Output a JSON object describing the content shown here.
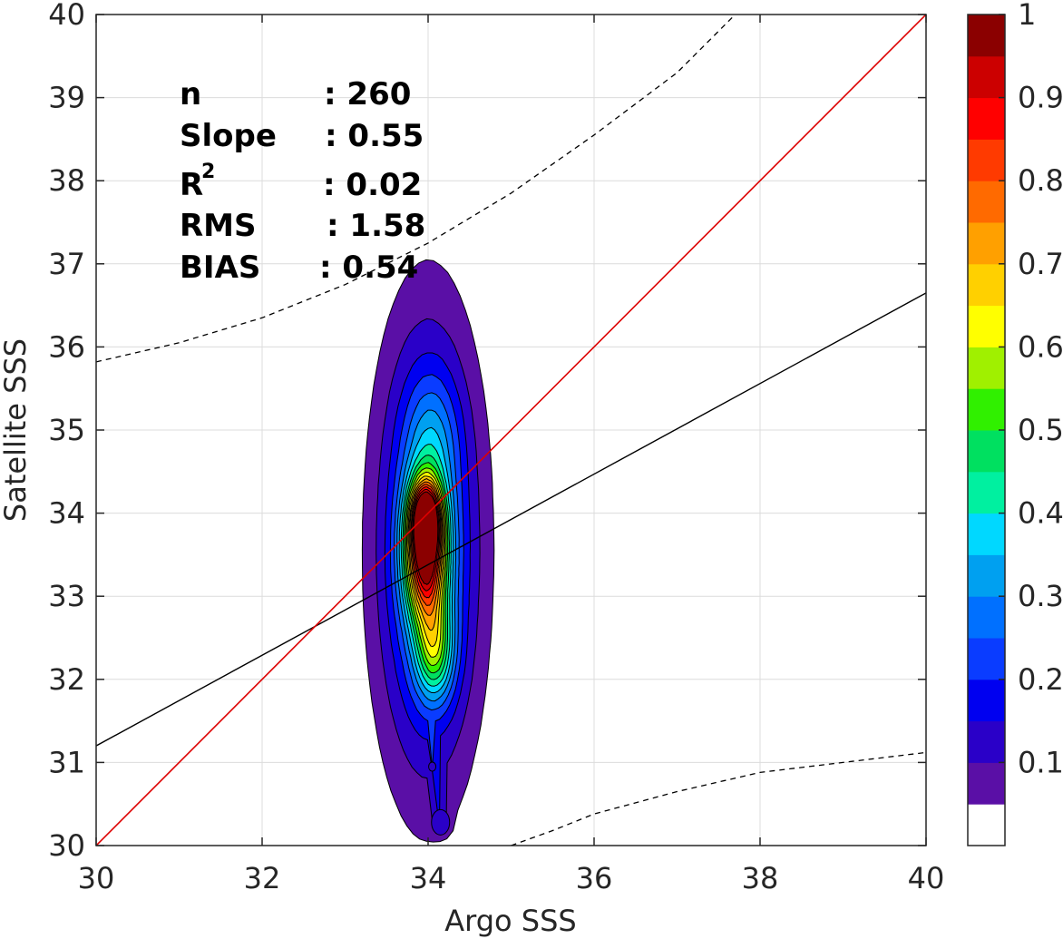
{
  "chart_data": {
    "type": "contour-scatter",
    "xlabel": "Argo SSS",
    "ylabel": "Satellite SSS",
    "xlim": [
      30,
      40
    ],
    "ylim": [
      30,
      40
    ],
    "x_ticks": [
      "30",
      "32",
      "34",
      "36",
      "38",
      "40"
    ],
    "y_ticks": [
      "30",
      "31",
      "32",
      "33",
      "34",
      "35",
      "36",
      "37",
      "38",
      "39",
      "40"
    ],
    "grid": true,
    "stats": {
      "n": {
        "label": "n",
        "value": ": 260"
      },
      "slope": {
        "label": "Slope",
        "value": ": 0.55"
      },
      "r2": {
        "label": "R",
        "sup": "2",
        "value": ": 0.02"
      },
      "rms": {
        "label": "RMS",
        "value": ": 1.58"
      },
      "bias": {
        "label": "BIAS",
        "value": ": 0.54"
      }
    },
    "reference_lines": {
      "one_to_one": {
        "color": "#dd0000",
        "points": [
          [
            30,
            30
          ],
          [
            40,
            40
          ]
        ]
      },
      "regression": {
        "color": "#000000",
        "slope": 0.55,
        "points": [
          [
            30,
            31.2
          ],
          [
            40,
            36.65
          ]
        ]
      },
      "upper_bound": {
        "style": "dashed",
        "points": [
          [
            30,
            35.82
          ],
          [
            31,
            36.05
          ],
          [
            32,
            36.35
          ],
          [
            33,
            36.75
          ],
          [
            34,
            37.25
          ],
          [
            35,
            37.85
          ],
          [
            36,
            38.55
          ],
          [
            37,
            39.3
          ],
          [
            37.7,
            40
          ]
        ]
      },
      "lower_bound": {
        "style": "dashed",
        "points": [
          [
            35,
            30
          ],
          [
            35.5,
            30.18
          ],
          [
            36,
            30.38
          ],
          [
            37,
            30.65
          ],
          [
            38,
            30.88
          ],
          [
            39,
            31.0
          ],
          [
            40,
            31.12
          ]
        ]
      }
    },
    "density_peaks": [
      {
        "x": 33.97,
        "y": 33.52,
        "level": 0.95
      },
      {
        "x": 33.97,
        "y": 33.98,
        "level": 0.85
      },
      {
        "x": 34.05,
        "y": 32.33,
        "level": 0.5
      },
      {
        "x": 34.15,
        "y": 30.28,
        "level": 0.1
      },
      {
        "x": 34.05,
        "y": 30.95,
        "level": 0.1
      }
    ],
    "colorbar": {
      "ticks": [
        "0.1",
        "0.2",
        "0.3",
        "0.4",
        "0.5",
        "0.6",
        "0.7",
        "0.8",
        "0.9",
        "1"
      ],
      "range": [
        0,
        1
      ],
      "colors": [
        "#ffffff",
        "#5a0fa6",
        "#2a00c8",
        "#0000f0",
        "#0a3cff",
        "#0070ff",
        "#00a0f0",
        "#00d8ff",
        "#00f0a0",
        "#00e060",
        "#30f000",
        "#a0f000",
        "#ffff00",
        "#ffd000",
        "#ffa000",
        "#ff6a00",
        "#ff3a00",
        "#ff0000",
        "#cc0000",
        "#8b0000"
      ]
    }
  }
}
